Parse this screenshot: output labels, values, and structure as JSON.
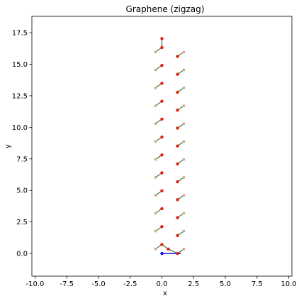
{
  "chart_data": {
    "type": "scatter",
    "title": "Graphene (zigzag)",
    "xlabel": "x",
    "ylabel": "y",
    "xlim": [
      -10.25,
      10.25
    ],
    "ylim": [
      -1.8,
      18.8
    ],
    "xticks": [
      "-10.0",
      "-7.5",
      "-5.0",
      "-2.5",
      "0.0",
      "2.5",
      "5.0",
      "7.5",
      "10.0"
    ],
    "yticks": [
      "0.0",
      "2.5",
      "5.0",
      "7.5",
      "10.0",
      "12.5",
      "15.0",
      "17.5"
    ],
    "grid": false,
    "bond_color": "#3a7d3a",
    "series": [
      {
        "role": "carbon",
        "color": "#e02010",
        "points": [
          [
            0.0,
            0.71
          ],
          [
            0.0,
            2.13
          ],
          [
            0.0,
            3.55
          ],
          [
            0.0,
            4.97
          ],
          [
            0.0,
            6.39
          ],
          [
            0.0,
            7.81
          ],
          [
            0.0,
            9.23
          ],
          [
            0.0,
            10.65
          ],
          [
            0.0,
            12.07
          ],
          [
            0.0,
            13.49
          ],
          [
            0.0,
            14.91
          ],
          [
            0.0,
            16.33
          ],
          [
            0.0,
            17.04
          ],
          [
            1.23,
            0.0
          ],
          [
            1.23,
            1.42
          ],
          [
            1.23,
            2.84
          ],
          [
            1.23,
            4.26
          ],
          [
            1.23,
            5.68
          ],
          [
            1.23,
            7.1
          ],
          [
            1.23,
            8.52
          ],
          [
            1.23,
            9.94
          ],
          [
            1.23,
            11.36
          ],
          [
            1.23,
            12.78
          ],
          [
            1.23,
            14.2
          ],
          [
            1.23,
            15.62
          ],
          [
            0.5,
            0.35
          ]
        ]
      },
      {
        "role": "hydrogen",
        "color": "#d4a890",
        "points": [
          [
            -0.5,
            0.35
          ],
          [
            -0.5,
            1.77
          ],
          [
            -0.5,
            3.19
          ],
          [
            -0.5,
            4.61
          ],
          [
            -0.5,
            6.03
          ],
          [
            -0.5,
            7.45
          ],
          [
            -0.5,
            8.87
          ],
          [
            -0.5,
            10.29
          ],
          [
            -0.5,
            11.71
          ],
          [
            -0.5,
            13.13
          ],
          [
            -0.5,
            14.55
          ],
          [
            -0.5,
            15.97
          ],
          [
            1.73,
            0.35
          ],
          [
            1.73,
            1.77
          ],
          [
            1.73,
            3.19
          ],
          [
            1.73,
            4.61
          ],
          [
            1.73,
            6.03
          ],
          [
            1.73,
            7.45
          ],
          [
            1.73,
            8.87
          ],
          [
            1.73,
            10.29
          ],
          [
            1.73,
            11.71
          ],
          [
            1.73,
            13.13
          ],
          [
            1.73,
            14.55
          ],
          [
            1.73,
            15.97
          ]
        ]
      }
    ],
    "vector": {
      "color": "#1010e0",
      "from": [
        0.0,
        0.0
      ],
      "to": [
        1.0,
        0.0
      ]
    }
  }
}
